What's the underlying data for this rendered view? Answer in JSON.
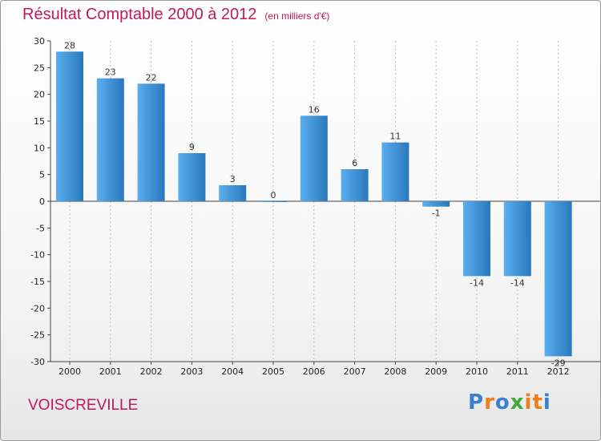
{
  "header": {
    "title": "Résultat Comptable 2000 à 2012",
    "subtitle": "(en milliers d'€)"
  },
  "footer": {
    "city": "VOISCREVILLE",
    "logo_text": "Proxiti",
    "logo_colors": [
      "#3a7fd0",
      "#f07c1a",
      "#3a7fd0",
      "#3ea83a",
      "#f07c1a",
      "#f07c1a",
      "#3a7fd0"
    ]
  },
  "colors": {
    "title": "#c0185b",
    "bar_top": "#5aaef0",
    "bar_bottom": "#2a78bc",
    "grid": "#bbbbbb"
  },
  "chart_data": {
    "type": "bar",
    "title": "Résultat Comptable 2000 à 2012",
    "subtitle": "(en milliers d'€)",
    "xlabel": "",
    "ylabel": "",
    "categories": [
      "2000",
      "2001",
      "2002",
      "2003",
      "2004",
      "2005",
      "2006",
      "2007",
      "2008",
      "2009",
      "2010",
      "2011",
      "2012"
    ],
    "values": [
      28,
      23,
      22,
      9,
      3,
      0,
      16,
      6,
      11,
      -1,
      -14,
      -14,
      -29
    ],
    "ylim": [
      -30,
      30
    ],
    "yticks": [
      30,
      25,
      20,
      15,
      10,
      5,
      0,
      -5,
      -10,
      -15,
      -20,
      -25,
      -30
    ],
    "ytick_labels": [
      "30",
      "25",
      "20",
      "15",
      "10",
      "5",
      "0",
      "-5",
      "-10",
      "-15",
      "-20",
      "-25",
      "-30"
    ],
    "data_labels": [
      "28",
      "23",
      "22",
      "9",
      "3",
      "0",
      "16",
      "6",
      "11",
      "-1",
      "-14",
      "-14",
      "-29"
    ],
    "grid": "vertical dashed"
  }
}
